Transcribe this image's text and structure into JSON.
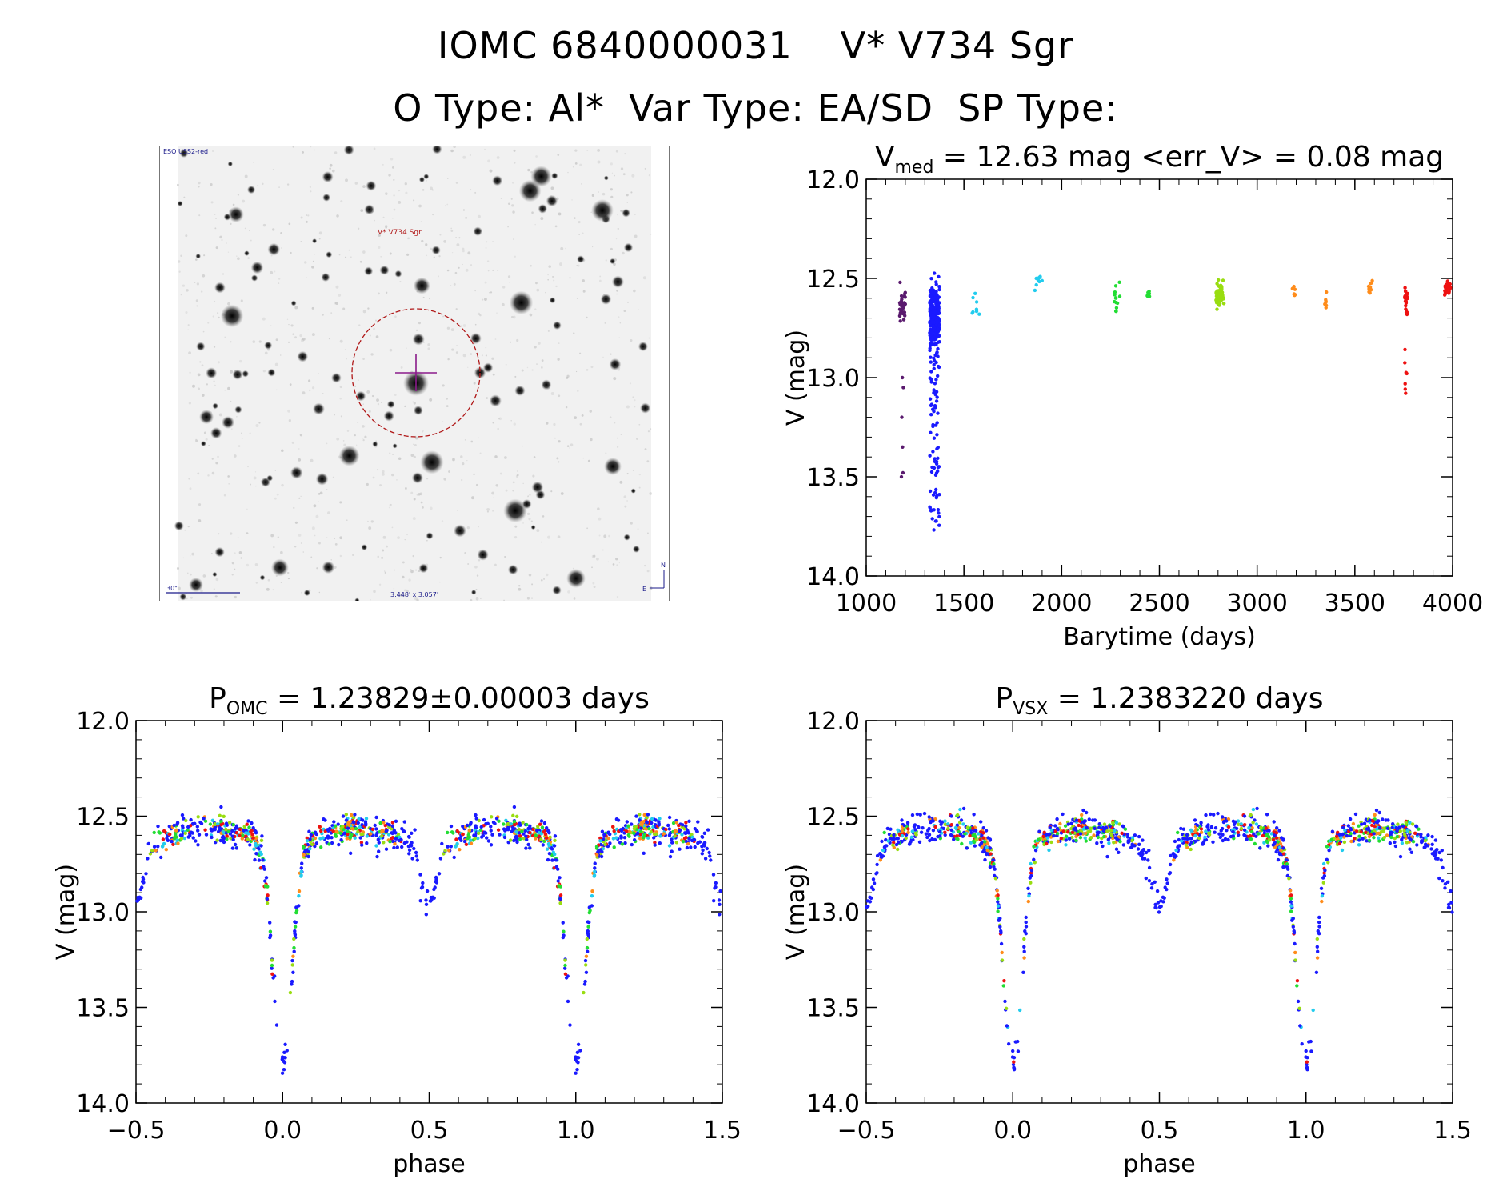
{
  "header": {
    "line1_left": "IOMC 6840000031",
    "line1_right": "V* V734 Sgr",
    "otype": "O Type: Al*",
    "vartype": "Var Type: EA/SD",
    "sptype": "SP Type:"
  },
  "finder": {
    "survey": "ESO USS2-red",
    "target_label": "V* V734 Sgr",
    "scale_label": "30\"",
    "fov_label": "3.448' x 3.057'",
    "north": "N",
    "east": "E"
  },
  "colors": {
    "blue": "#1a1aff",
    "purple": "#5a1a6e",
    "cyan": "#22ccee",
    "green": "#22dd33",
    "yellowgreen": "#99dd11",
    "orange": "#ff8c1a",
    "red": "#ee1111"
  },
  "chart_data": [
    {
      "type": "scatter",
      "name": "lightcurve",
      "title_main": "V",
      "title_sub": "med",
      "title_rest": " = 12.63 mag <err_V> = 0.08 mag",
      "xlabel": "Barytime (days)",
      "ylabel": "V (mag)",
      "xlim": [
        1000,
        4000
      ],
      "ylim": [
        14.0,
        12.0
      ],
      "xticks": [
        "1000",
        "1500",
        "2000",
        "2500",
        "3000",
        "3500",
        "4000"
      ],
      "yticks": [
        "12.0",
        "12.5",
        "13.0",
        "13.5",
        "14.0"
      ],
      "series": [
        {
          "name": "purple",
          "color": "purple",
          "x_range": [
            1170,
            1200
          ],
          "y_center": 12.64,
          "y_spread": 0.06,
          "n": 40,
          "outliers": [
            [
              1185,
              13.0
            ],
            [
              1190,
              13.05
            ],
            [
              1182,
              13.2
            ],
            [
              1186,
              13.35
            ],
            [
              1180,
              13.5
            ],
            [
              1188,
              13.48
            ]
          ]
        },
        {
          "name": "blue",
          "color": "blue",
          "x_range": [
            1325,
            1375
          ],
          "y_center": 12.7,
          "y_spread": 0.15,
          "n": 340,
          "tail_to": 13.78
        },
        {
          "name": "lightblue",
          "color": "cyan",
          "x_range": [
            1540,
            1580
          ],
          "y_center": 12.66,
          "y_spread": 0.07,
          "n": 8
        },
        {
          "name": "cyan",
          "color": "cyan",
          "x_range": [
            1860,
            1900
          ],
          "y_center": 12.5,
          "y_spread": 0.05,
          "n": 10
        },
        {
          "name": "green1",
          "color": "green",
          "x_range": [
            2270,
            2300
          ],
          "y_center": 12.6,
          "y_spread": 0.06,
          "n": 14
        },
        {
          "name": "green2",
          "color": "green",
          "x_range": [
            2435,
            2450
          ],
          "y_center": 12.58,
          "y_spread": 0.03,
          "n": 8
        },
        {
          "name": "yellowgreen",
          "color": "yellowgreen",
          "x_range": [
            2790,
            2830
          ],
          "y_center": 12.58,
          "y_spread": 0.06,
          "n": 60
        },
        {
          "name": "yellow",
          "color": "orange",
          "x_range": [
            3180,
            3195
          ],
          "y_center": 12.58,
          "y_spread": 0.03,
          "n": 8
        },
        {
          "name": "orange1",
          "color": "orange",
          "x_range": [
            3345,
            3360
          ],
          "y_center": 12.62,
          "y_spread": 0.04,
          "n": 8
        },
        {
          "name": "orange2",
          "color": "orange",
          "x_range": [
            3570,
            3590
          ],
          "y_center": 12.54,
          "y_spread": 0.03,
          "n": 10
        },
        {
          "name": "red1",
          "color": "red",
          "x_range": [
            3755,
            3770
          ],
          "y_center": 12.6,
          "y_spread": 0.05,
          "n": 30,
          "tail_to": 13.17
        },
        {
          "name": "red2",
          "color": "red",
          "x_range": [
            3960,
            3990
          ],
          "y_center": 12.55,
          "y_spread": 0.03,
          "n": 30
        }
      ]
    },
    {
      "type": "scatter",
      "name": "phase_omc",
      "title_main": "P",
      "title_sub": "OMC",
      "title_rest": " = 1.23829±0.00003 days",
      "xlabel": "phase",
      "ylabel": "V (mag)",
      "xlim": [
        -0.5,
        1.5
      ],
      "ylim": [
        14.0,
        12.0
      ],
      "xticks": [
        "−0.5",
        "0.0",
        "0.5",
        "1.0",
        "1.5"
      ],
      "yticks": [
        "12.0",
        "12.5",
        "13.0",
        "13.5",
        "14.0"
      ],
      "model": {
        "baseline": 12.6,
        "primary_depth": 1.15,
        "secondary_depth": 0.3,
        "primary_width": 0.045,
        "secondary_width": 0.04
      },
      "n_points": 620
    },
    {
      "type": "scatter",
      "name": "phase_vsx",
      "title_main": "P",
      "title_sub": "VSX",
      "title_rest": " = 1.2383220 days",
      "xlabel": "phase",
      "ylabel": "V (mag)",
      "xlim": [
        -0.5,
        1.5
      ],
      "ylim": [
        14.0,
        12.0
      ],
      "xticks": [
        "−0.5",
        "0.0",
        "0.5",
        "1.0",
        "1.5"
      ],
      "yticks": [
        "12.0",
        "12.5",
        "13.0",
        "13.5",
        "14.0"
      ],
      "model": {
        "baseline": 12.6,
        "primary_depth": 1.15,
        "secondary_depth": 0.3,
        "primary_width": 0.045,
        "secondary_width": 0.04
      },
      "n_points": 620
    }
  ]
}
